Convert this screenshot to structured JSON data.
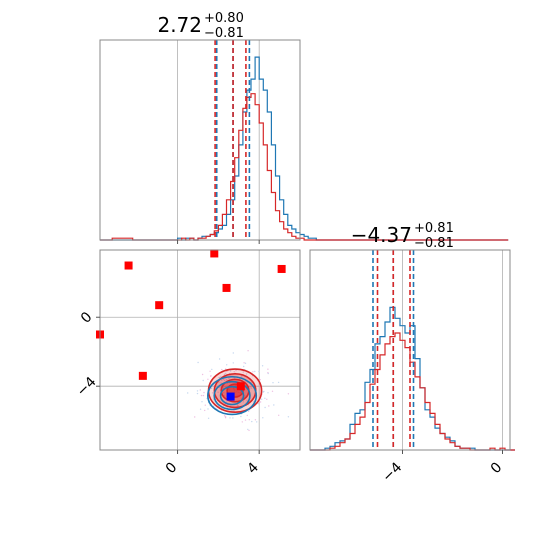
{
  "chart_data": {
    "type": "corner",
    "parameters": [
      {
        "title_value": "2.72",
        "title_plus": "+0.80",
        "title_minus": "−0.81"
      },
      {
        "title_value": "−4.37",
        "title_plus": "+0.81",
        "title_minus": "−0.81"
      }
    ],
    "x_ticks_param1": [
      {
        "value": 0,
        "label": "0"
      },
      {
        "value": 4,
        "label": "4"
      }
    ],
    "x_ticks_param2": [
      {
        "value": -4,
        "label": "−4"
      },
      {
        "value": 0,
        "label": "0"
      }
    ],
    "y_ticks_param2": [
      {
        "value": 0,
        "label": "0"
      },
      {
        "value": -4,
        "label": "−4"
      }
    ],
    "ranges": {
      "param1": [
        -3.8,
        6.0
      ],
      "param2": [
        -7.7,
        0.3
      ],
      "hist2d_y": [
        -7.7,
        3.9
      ]
    },
    "series": [
      {
        "name": "blue",
        "color": "#1f77b4",
        "quantiles_param1": [
          1.92,
          2.72,
          3.52
        ],
        "quantiles_param2": [
          -5.18,
          -4.37,
          -3.56
        ],
        "marker": {
          "x": 2.6,
          "y": -4.6
        },
        "hist_param1": {
          "bin_start": -3.8,
          "bin_width": 0.2,
          "counts": [
            0,
            0,
            0,
            0,
            0,
            0,
            0,
            0,
            0,
            0,
            0,
            0,
            0,
            0,
            0,
            0,
            0,
            0,
            0,
            1,
            0,
            1,
            1,
            0,
            1,
            2,
            2,
            3,
            4,
            6,
            8,
            14,
            22,
            35,
            52,
            70,
            82,
            88,
            100,
            88,
            82,
            70,
            52,
            35,
            22,
            14,
            8,
            6,
            4,
            3,
            2,
            1,
            1,
            0,
            0,
            0,
            0,
            0,
            0,
            0,
            0,
            0,
            0,
            0,
            0,
            0,
            0,
            0,
            0,
            0,
            0,
            0,
            0,
            0,
            0,
            0,
            0,
            0,
            0,
            0,
            0,
            0,
            0,
            0,
            0,
            0,
            0,
            0,
            0,
            0,
            0,
            0,
            0,
            0,
            0,
            0,
            0,
            0,
            0,
            0
          ]
        },
        "hist_param2": {
          "bin_start": -7.7,
          "bin_width": 0.2,
          "counts": [
            0,
            0,
            0,
            1,
            2,
            4,
            5,
            6,
            14,
            20,
            22,
            37,
            44,
            58,
            62,
            70,
            78,
            72,
            68,
            64,
            68,
            50,
            34,
            22,
            18,
            12,
            9,
            7,
            5,
            2,
            1,
            1,
            1,
            0,
            0,
            0,
            0,
            0,
            0,
            0,
            0
          ]
        }
      },
      {
        "name": "red",
        "color": "#d62728",
        "quantiles_param1": [
          1.84,
          2.72,
          3.35
        ],
        "quantiles_param2": [
          -5.0,
          -4.37,
          -3.7
        ],
        "marker": {
          "x": 3.1,
          "y": -4.0
        },
        "hist_param1": {
          "bin_start": -3.8,
          "bin_width": 0.2,
          "counts": [
            0,
            0,
            0,
            1,
            1,
            1,
            1,
            1,
            0,
            0,
            0,
            0,
            0,
            0,
            0,
            0,
            0,
            0,
            0,
            0,
            1,
            0,
            1,
            0,
            1,
            1,
            2,
            3,
            5,
            8,
            14,
            22,
            32,
            45,
            60,
            72,
            78,
            80,
            74,
            64,
            52,
            38,
            26,
            16,
            10,
            6,
            4,
            2,
            1,
            1,
            0,
            0,
            0,
            0,
            0,
            0,
            0,
            0,
            0,
            0,
            0,
            0,
            0,
            0,
            0,
            0,
            0,
            0,
            0,
            0,
            0,
            0,
            0,
            0,
            0,
            0,
            0,
            0,
            0,
            0,
            0,
            0,
            0,
            0,
            0,
            0,
            0,
            0,
            0,
            0,
            0,
            0,
            0,
            0,
            0,
            0,
            0,
            0,
            0,
            0
          ]
        },
        "hist_param2": {
          "bin_start": -7.7,
          "bin_width": 0.2,
          "counts": [
            0,
            0,
            0,
            0,
            1,
            2,
            4,
            6,
            9,
            14,
            18,
            26,
            36,
            44,
            52,
            58,
            62,
            64,
            60,
            56,
            48,
            40,
            34,
            26,
            20,
            14,
            9,
            6,
            4,
            2,
            1,
            1,
            0,
            0,
            0,
            0,
            1,
            0,
            1,
            0,
            0
          ]
        }
      }
    ],
    "extra_points": [
      {
        "x": -2.4,
        "y": 3.0
      },
      {
        "x": 1.8,
        "y": 3.7
      },
      {
        "x": 5.1,
        "y": 2.8
      },
      {
        "x": 2.4,
        "y": 1.7
      },
      {
        "x": -0.9,
        "y": 0.7
      },
      {
        "x": -3.8,
        "y": -1.0
      },
      {
        "x": -1.7,
        "y": -3.4
      }
    ]
  }
}
